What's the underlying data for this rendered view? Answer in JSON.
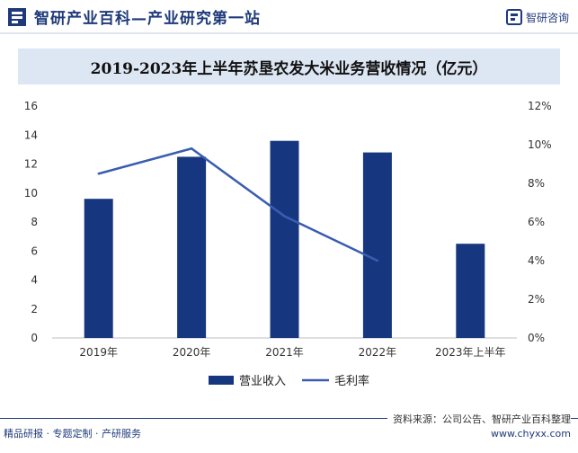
{
  "header": {
    "title": "智研产业百科—产业研究第一站",
    "brand_name": "智研咨询",
    "logo_icon": "zhiyan-logo-icon"
  },
  "colors": {
    "bar": "#16377f",
    "line": "#3a5db0",
    "brand": "#1f3a7a",
    "title_band": "#dde6f3"
  },
  "chart_data": {
    "type": "bar",
    "title": "2019-2023年上半年苏垦农发大米业务营收情况（亿元）",
    "categories": [
      "2019年",
      "2020年",
      "2021年",
      "2022年",
      "2023年上半年"
    ],
    "series": [
      {
        "name": "营业收入",
        "type": "bar",
        "axis": "left",
        "values": [
          9.6,
          12.5,
          13.6,
          12.8,
          6.5
        ]
      },
      {
        "name": "毛利率",
        "type": "line",
        "axis": "right",
        "values": [
          8.5,
          9.8,
          6.3,
          4.0,
          null
        ]
      }
    ],
    "y_left": {
      "ylim": [
        0,
        16
      ],
      "ticks": [
        "0",
        "2",
        "4",
        "6",
        "8",
        "10",
        "12",
        "14",
        "16"
      ]
    },
    "y_right": {
      "ylim": [
        0,
        12
      ],
      "ticks": [
        "0%",
        "2%",
        "4%",
        "6%",
        "8%",
        "10%",
        "12%"
      ]
    },
    "grid": false,
    "legend_position": "bottom"
  },
  "footer": {
    "left": "精品研报 · 专题定制 · 产研服务",
    "source": "资料来源：公司公告、智研产业百科整理",
    "url": "www.chyxx.com"
  }
}
